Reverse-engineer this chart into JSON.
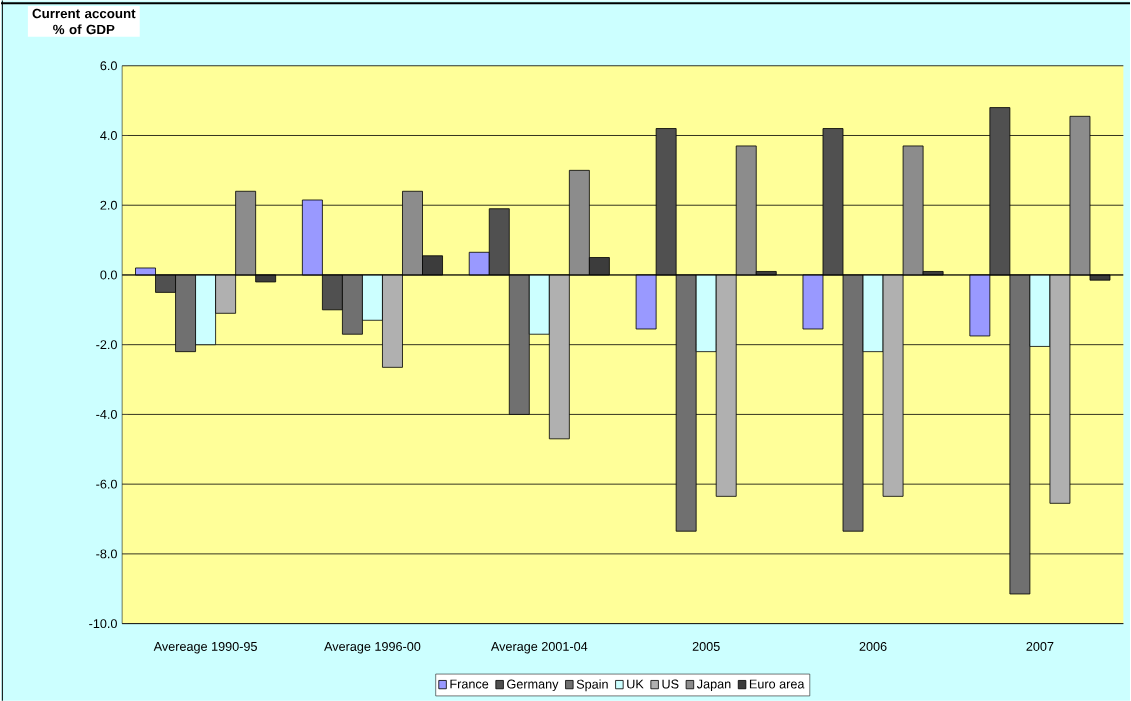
{
  "chart_data": {
    "type": "bar",
    "ylabel": "Current account % of GDP",
    "categories": [
      "Avereage 1990-95",
      "Average 1996-00",
      "Average 2001-04",
      "2005",
      "2006",
      "2007"
    ],
    "series": [
      {
        "name": "France",
        "color": "#9999ff",
        "values": [
          0.2,
          2.15,
          0.65,
          -1.55,
          -1.55,
          -1.75
        ]
      },
      {
        "name": "Germany",
        "color": "#505050",
        "values": [
          -0.5,
          -1.0,
          1.9,
          4.2,
          4.2,
          4.8
        ]
      },
      {
        "name": "Spain",
        "color": "#707070",
        "values": [
          -2.2,
          -1.7,
          -4.0,
          -7.35,
          -7.35,
          -9.15
        ]
      },
      {
        "name": "UK",
        "color": "#ccffff",
        "values": [
          -2.0,
          -1.3,
          -1.7,
          -2.2,
          -2.2,
          -2.05
        ]
      },
      {
        "name": "US",
        "color": "#b0b0b0",
        "values": [
          -1.1,
          -2.65,
          -4.7,
          -6.35,
          -6.35,
          -6.55
        ]
      },
      {
        "name": "Japan",
        "color": "#8c8c8c",
        "values": [
          2.4,
          2.4,
          3.0,
          3.7,
          3.7,
          4.55
        ]
      },
      {
        "name": "Euro area",
        "color": "#3c3c3c",
        "values": [
          -0.2,
          0.55,
          0.5,
          0.1,
          0.1,
          -0.15
        ]
      }
    ],
    "ylim": [
      -10,
      6
    ],
    "yticks": [
      {
        "value": -10,
        "label": "-10.0"
      },
      {
        "value": -8,
        "label": "-8.0"
      },
      {
        "value": -6,
        "label": "-6.0"
      },
      {
        "value": -4,
        "label": "-4.0"
      },
      {
        "value": -2,
        "label": "-2.0"
      },
      {
        "value": 0,
        "label": "0.0"
      },
      {
        "value": 2,
        "label": "2.0"
      },
      {
        "value": 4,
        "label": "4.0"
      },
      {
        "value": 6,
        "label": "6.0"
      }
    ],
    "grid": "y",
    "legend": "bottom"
  }
}
